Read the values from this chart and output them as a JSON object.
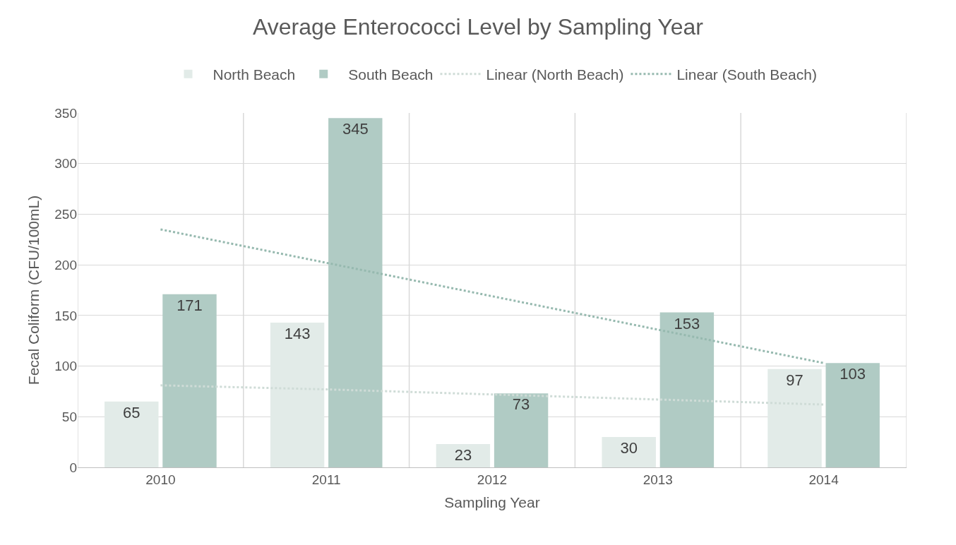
{
  "chart_data": {
    "type": "bar",
    "title": "Average Enterococci Level by Sampling Year",
    "xlabel": "Sampling Year",
    "ylabel": "Fecal Coliform (CFU/100mL)",
    "categories": [
      "2010",
      "2011",
      "2012",
      "2013",
      "2014"
    ],
    "series": [
      {
        "name": "North Beach",
        "color": "#e2ebe8",
        "values": [
          65,
          143,
          23,
          30,
          97
        ],
        "value_labels": [
          "65",
          "143",
          "23",
          "30",
          "97"
        ]
      },
      {
        "name": "South Beach",
        "color": "#b0cbc4",
        "values": [
          171,
          345,
          73,
          153,
          103
        ],
        "value_labels": [
          "171",
          "345",
          "73",
          "153",
          "103"
        ]
      },
      {
        "name": "Linear (North Beach)",
        "type": "line",
        "line_style": "dotted",
        "color": "#cfdcd7",
        "values": [
          81,
          77,
          72,
          67,
          62
        ]
      },
      {
        "name": "Linear (South Beach)",
        "type": "line",
        "line_style": "dotted",
        "color": "#96b9af",
        "values": [
          235,
          202,
          169,
          136,
          103
        ]
      }
    ],
    "ylim": [
      0,
      350
    ],
    "yticks": [
      0,
      50,
      100,
      150,
      200,
      250,
      300,
      350
    ],
    "grid": true,
    "legend": "top"
  }
}
